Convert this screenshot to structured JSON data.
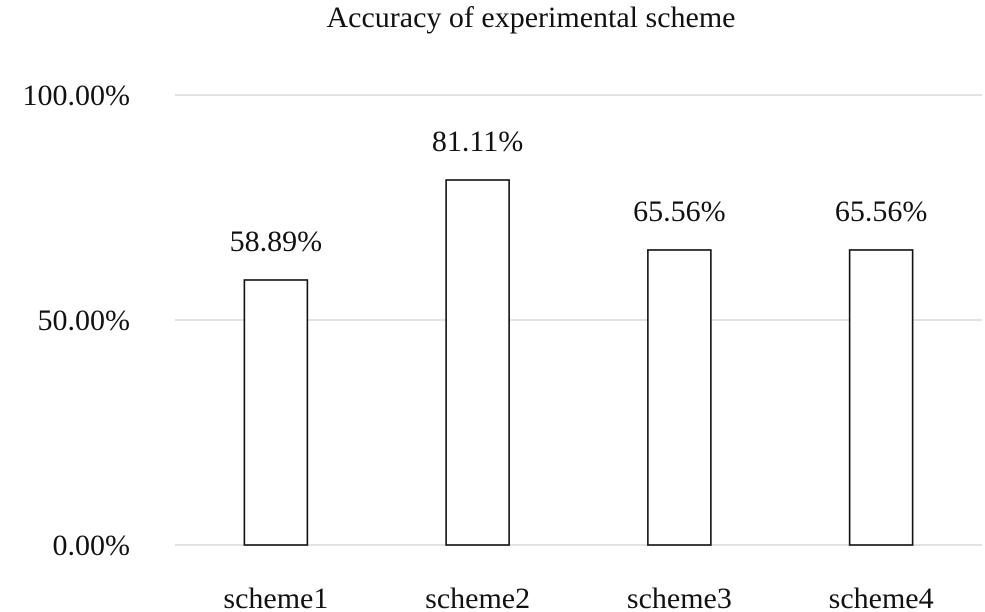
{
  "chart_data": {
    "type": "bar",
    "title": "Accuracy of experimental scheme",
    "xlabel": "",
    "ylabel": "",
    "categories": [
      "scheme1",
      "scheme2",
      "scheme3",
      "scheme4"
    ],
    "values": [
      58.89,
      81.11,
      65.56,
      65.56
    ],
    "value_labels": [
      "58.89%",
      "81.11%",
      "65.56%",
      "65.56%"
    ],
    "ylim": [
      0,
      100
    ],
    "yticks": [
      0,
      50,
      100
    ],
    "ytick_labels": [
      "0.00%",
      "50.00%",
      "100.00%"
    ],
    "grid": true,
    "legend": "none",
    "colors": {
      "bar_fill": "#ffffff",
      "bar_stroke": "#111111",
      "grid": "#d9d9d9",
      "text": "#111111"
    }
  }
}
